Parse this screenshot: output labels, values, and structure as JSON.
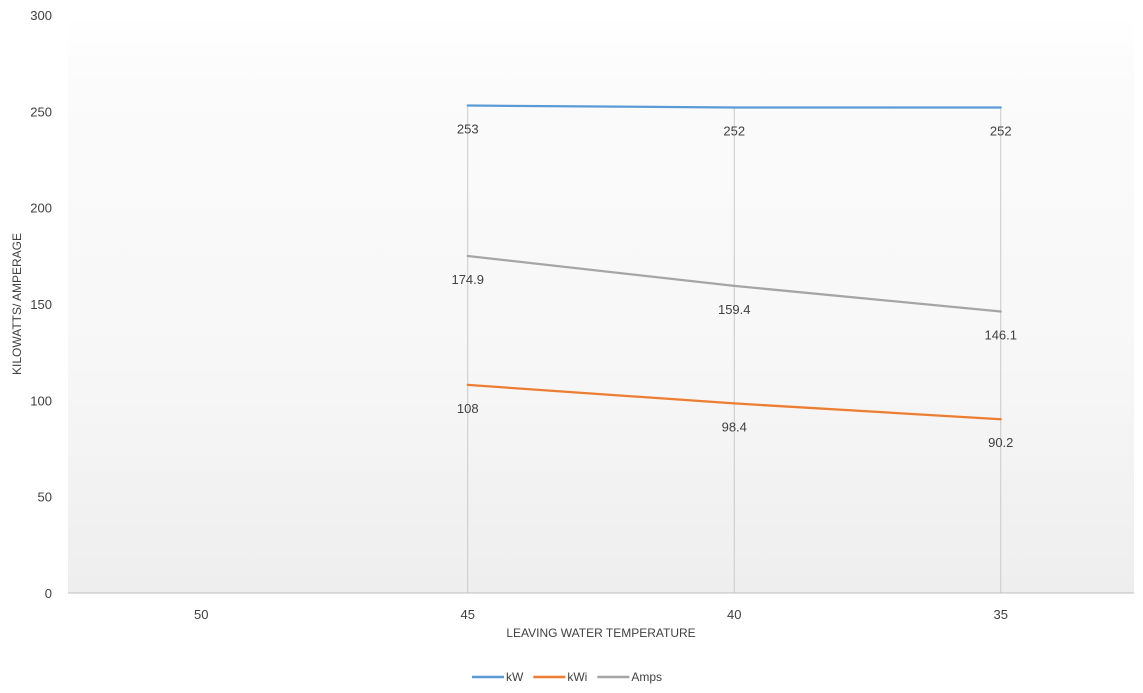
{
  "chart_data": {
    "type": "line",
    "title": "",
    "xlabel": "LEAVING WATER TEMPERATURE",
    "ylabel": "KILOWATTS/ AMPERAGE",
    "categories": [
      "50",
      "45",
      "40",
      "35"
    ],
    "ylim": [
      0,
      300
    ],
    "yticks": [
      0,
      50,
      100,
      150,
      200,
      250,
      300
    ],
    "grid": false,
    "drop_lines": true,
    "legend_position": "bottom",
    "series": [
      {
        "name": "kW",
        "color": "#5B9BD5",
        "values": [
          null,
          253,
          252,
          252
        ],
        "labels": [
          "",
          "253",
          "252",
          "252"
        ]
      },
      {
        "name": "kWi",
        "color": "#ED7D31",
        "values": [
          null,
          108,
          98.4,
          90.2
        ],
        "labels": [
          "",
          "108",
          "98.4",
          "90.2"
        ]
      },
      {
        "name": "Amps",
        "color": "#A5A5A5",
        "values": [
          null,
          174.9,
          159.4,
          146.1
        ],
        "labels": [
          "",
          "174.9",
          "159.4",
          "146.1"
        ]
      }
    ]
  }
}
